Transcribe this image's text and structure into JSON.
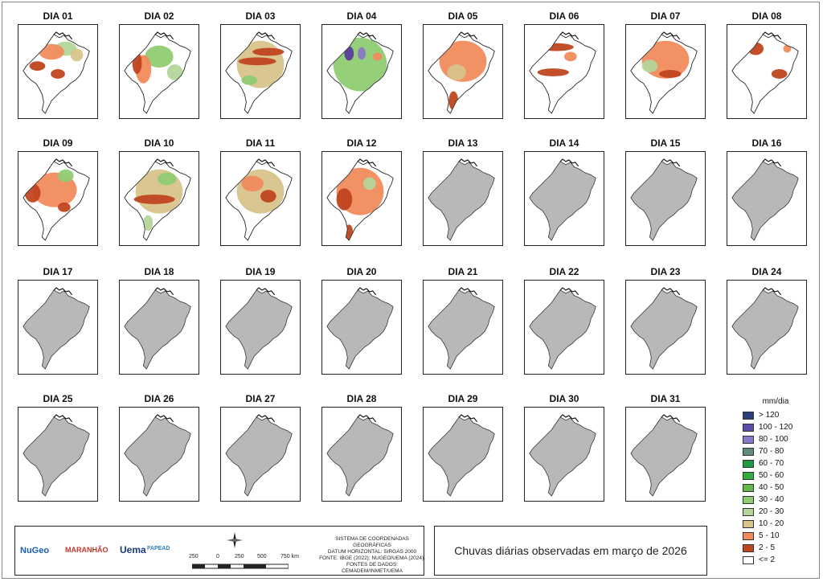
{
  "days": [
    "DIA 01",
    "DIA 02",
    "DIA 03",
    "DIA 04",
    "DIA 05",
    "DIA 06",
    "DIA 07",
    "DIA 08",
    "DIA 09",
    "DIA 10",
    "DIA 11",
    "DIA 12",
    "DIA 13",
    "DIA 14",
    "DIA 15",
    "DIA 16",
    "DIA 17",
    "DIA 18",
    "DIA 19",
    "DIA 20",
    "DIA 21",
    "DIA 22",
    "DIA 23",
    "DIA 24",
    "DIA 25",
    "DIA 26",
    "DIA 27",
    "DIA 28",
    "DIA 29",
    "DIA 30",
    "DIA 31"
  ],
  "observed_days": 12,
  "colors": {
    "nodata": "#b8b8b8",
    "c2": "#c0441f",
    "c5": "#f08b5c",
    "c10": "#d8c38a",
    "c20": "#b3d69a",
    "c30": "#8fcc73",
    "c40": "#63b84a",
    "c100": "#8a78c8",
    "c120": "#5a3d9e"
  },
  "legend": {
    "title": "mm/dia",
    "items": [
      {
        "label": "> 120",
        "color": "#2b3f7a"
      },
      {
        "label": "100 - 120",
        "color": "#5a4ea8"
      },
      {
        "label": "80 - 100",
        "color": "#8a78c8"
      },
      {
        "label": "70 - 80",
        "color": "#5e8a80"
      },
      {
        "label": "60 - 70",
        "color": "#1e9a45"
      },
      {
        "label": "50 - 60",
        "color": "#33ae3e"
      },
      {
        "label": "40 - 50",
        "color": "#63b84a"
      },
      {
        "label": "30 - 40",
        "color": "#8fcc73"
      },
      {
        "label": "20 - 30",
        "color": "#b3d69a"
      },
      {
        "label": "10 - 20",
        "color": "#d8c38a"
      },
      {
        "label": "5 - 10",
        "color": "#f08b5c"
      },
      {
        "label": "2 - 5",
        "color": "#c0441f"
      },
      {
        "label": "<= 2",
        "color": "#ffffff"
      }
    ]
  },
  "info": {
    "logos": [
      "NuGeo",
      "MARANHÃO",
      "Uema",
      "FAPEAD"
    ],
    "srs_lines": [
      "SISTEMA DE COORDENADAS GEOGRÁFICAS",
      "DATUM HORIZONTAL: SIRGAS 2000",
      "FONTE: IBGE (2022); NUGEO/UEMA (2024).",
      "FONTES DE DADOS: CEMADEM/INMET/UEMA"
    ],
    "scale_labels": [
      "250",
      "0",
      "250",
      "500",
      "750 km"
    ]
  },
  "title": "Chuvas diárias observadas em março de 2026"
}
